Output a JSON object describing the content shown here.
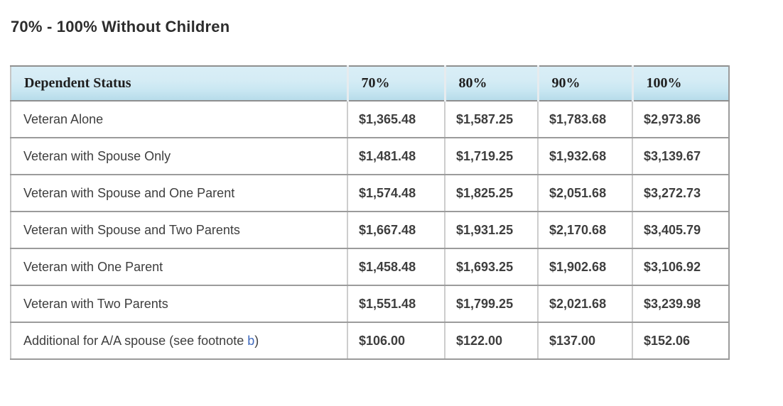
{
  "page": {
    "title": "70% - 100% Without Children"
  },
  "table": {
    "columns": [
      "Dependent Status",
      "70%",
      "80%",
      "90%",
      "100%"
    ],
    "rows": [
      {
        "label_parts": [
          {
            "text": "Veteran Alone"
          }
        ],
        "values": [
          "$1,365.48",
          "$1,587.25",
          "$1,783.68",
          "$2,973.86"
        ]
      },
      {
        "label_parts": [
          {
            "text": "Veteran with Spouse Only"
          }
        ],
        "values": [
          "$1,481.48",
          "$1,719.25",
          "$1,932.68",
          "$3,139.67"
        ]
      },
      {
        "label_parts": [
          {
            "text": "Veteran with Spouse and One Parent"
          }
        ],
        "values": [
          "$1,574.48",
          "$1,825.25",
          "$2,051.68",
          "$3,272.73"
        ]
      },
      {
        "label_parts": [
          {
            "text": "Veteran with Spouse and Two Parents"
          }
        ],
        "values": [
          "$1,667.48",
          "$1,931.25",
          "$2,170.68",
          "$3,405.79"
        ]
      },
      {
        "label_parts": [
          {
            "text": "Veteran with One Parent"
          }
        ],
        "values": [
          "$1,458.48",
          "$1,693.25",
          "$1,902.68",
          "$3,106.92"
        ]
      },
      {
        "label_parts": [
          {
            "text": "Veteran with Two Parents"
          }
        ],
        "values": [
          "$1,551.48",
          "$1,799.25",
          "$2,021.68",
          "$3,239.98"
        ]
      },
      {
        "label_parts": [
          {
            "text": "Additional for A/A spouse (see footnote "
          },
          {
            "text": "b",
            "link": true
          },
          {
            "text": ")"
          }
        ],
        "values": [
          "$106.00",
          "$122.00",
          "$137.00",
          "$152.06"
        ]
      }
    ]
  },
  "colors": {
    "title_text": "#2d2d2d",
    "header_gradient_top": "#d9eef7",
    "header_gradient_bottom": "#b7dcea",
    "header_text": "#1f1f1f",
    "body_text": "#3e3e3e",
    "row_border": "#9b9b9b",
    "column_border": "#cdcdcd",
    "footnote_link": "#3f69bd"
  }
}
